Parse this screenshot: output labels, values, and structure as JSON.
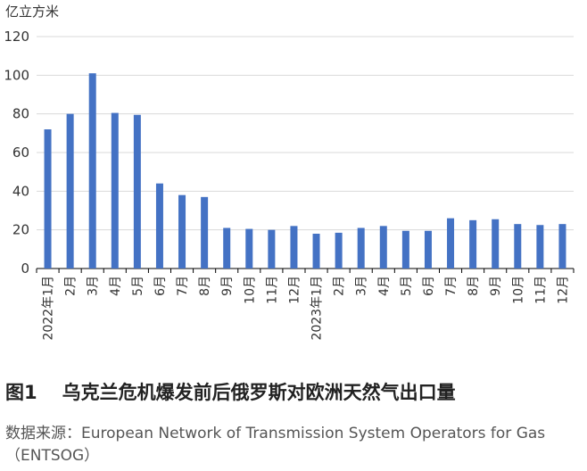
{
  "chart_data": {
    "type": "bar",
    "ylabel": "亿立方米",
    "ylim": [
      0,
      120
    ],
    "yticks": [
      0,
      20,
      40,
      60,
      80,
      100,
      120
    ],
    "color": "#4472C4",
    "categories": [
      "2022年1月",
      "2月",
      "3月",
      "4月",
      "5月",
      "6月",
      "7月",
      "8月",
      "9月",
      "10月",
      "11月",
      "12月",
      "2023年1月",
      "2月",
      "3月",
      "4月",
      "5月",
      "6月",
      "7月",
      "8月",
      "9月",
      "10月",
      "11月",
      "12月"
    ],
    "values": [
      72,
      80,
      101,
      80.5,
      79.5,
      44,
      38,
      37,
      21,
      20.5,
      20,
      22,
      18,
      18.5,
      21,
      22,
      19.5,
      19.5,
      26,
      25,
      25.5,
      23,
      22.5,
      23
    ]
  },
  "figure": {
    "number": "图1",
    "title": "乌克兰危机爆发前后俄罗斯对欧洲天然气出口量",
    "source": "数据来源：European Network of Transmission System Operators for Gas（ENTSOG）"
  }
}
